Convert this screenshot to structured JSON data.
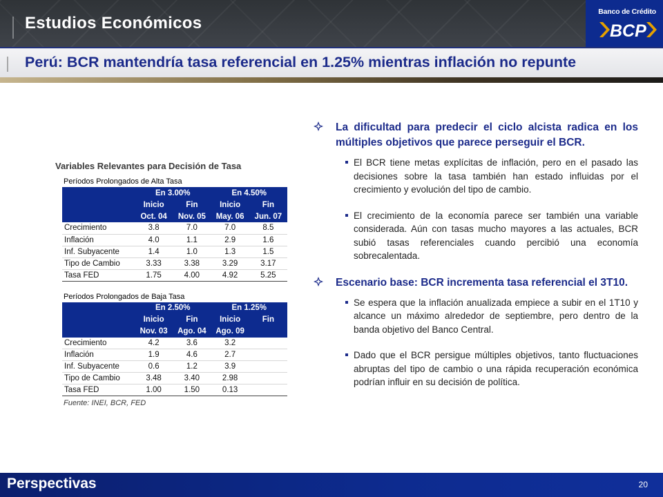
{
  "header": {
    "section": "Estudios Económicos",
    "title": "Perú: BCR mantendría tasa referencial en 1.25% mientras inflación no repunte",
    "logo_text": "Banco de Crédito",
    "logo_mark": "BCP"
  },
  "table": {
    "title": "Variables Relevantes para Decisión de Tasa",
    "high": {
      "label": "Períodos Prolongados de Alta Tasa",
      "groups": [
        "En 3.00%",
        "En 4.50%"
      ],
      "subheads": [
        "Inicio",
        "Fin",
        "Inicio",
        "Fin"
      ],
      "dates": [
        "Oct. 04",
        "Nov. 05",
        "May. 06",
        "Jun. 07"
      ],
      "rows": [
        {
          "label": "Crecimiento",
          "v": [
            "3.8",
            "7.0",
            "7.0",
            "8.5"
          ]
        },
        {
          "label": "Inflación",
          "v": [
            "4.0",
            "1.1",
            "2.9",
            "1.6"
          ]
        },
        {
          "label": "Inf. Subyacente",
          "v": [
            "1.4",
            "1.0",
            "1.3",
            "1.5"
          ]
        },
        {
          "label": "Tipo de Cambio",
          "v": [
            "3.33",
            "3.38",
            "3.29",
            "3.17"
          ]
        },
        {
          "label": "Tasa FED",
          "v": [
            "1.75",
            "4.00",
            "4.92",
            "5.25"
          ]
        }
      ]
    },
    "low": {
      "label": "Períodos Prolongados de Baja Tasa",
      "groups": [
        "En 2.50%",
        "En 1.25%"
      ],
      "subheads": [
        "Inicio",
        "Fin",
        "Inicio",
        "Fin"
      ],
      "dates": [
        "Nov. 03",
        "Ago. 04",
        "Ago. 09",
        ""
      ],
      "rows": [
        {
          "label": "Crecimiento",
          "v": [
            "4.2",
            "3.6",
            "3.2",
            ""
          ]
        },
        {
          "label": "Inflación",
          "v": [
            "1.9",
            "4.6",
            "2.7",
            ""
          ]
        },
        {
          "label": "Inf. Subyacente",
          "v": [
            "0.6",
            "1.2",
            "3.9",
            ""
          ]
        },
        {
          "label": "Tipo de Cambio",
          "v": [
            "3.48",
            "3.40",
            "2.98",
            ""
          ]
        },
        {
          "label": "Tasa FED",
          "v": [
            "1.00",
            "1.50",
            "0.13",
            ""
          ]
        }
      ]
    },
    "source": "Fuente: INEI, BCR, FED"
  },
  "bullets": [
    {
      "text": "La dificultad para predecir el ciclo alcista radica en los múltiples objetivos que parece perseguir el BCR.",
      "subs": [
        "El BCR tiene metas explícitas de inflación, pero en el pasado las decisiones sobre la tasa también han estado influidas por el crecimiento y evolución del tipo de cambio.",
        "El crecimiento de la economía parece ser también una variable considerada. Aún con tasas mucho mayores a las actuales, BCR subió tasas referenciales cuando percibió una economía sobrecalentada."
      ]
    },
    {
      "text": "Escenario base: BCR incrementa tasa referencial el 3T10.",
      "subs": [
        "Se espera que la inflación anualizada empiece a subir en el 1T10 y alcance un máximo alrededor de septiembre, pero dentro de la banda objetivo del Banco Central.",
        "Dado que el BCR persigue múltiples objetivos, tanto fluctuaciones abruptas del tipo de cambio o una rápida recuperación económica podrían influir en su decisión de política."
      ]
    }
  ],
  "footer": {
    "label": "Perspectivas",
    "page": "20"
  },
  "colors": {
    "brand_blue": "#0d2b8f",
    "title_blue": "#1b2a8a",
    "logo_accent": "#e5a100"
  },
  "icons": {
    "bullet_main": "diamond-bullet-icon",
    "bullet_sub": "square-bullet-icon"
  }
}
